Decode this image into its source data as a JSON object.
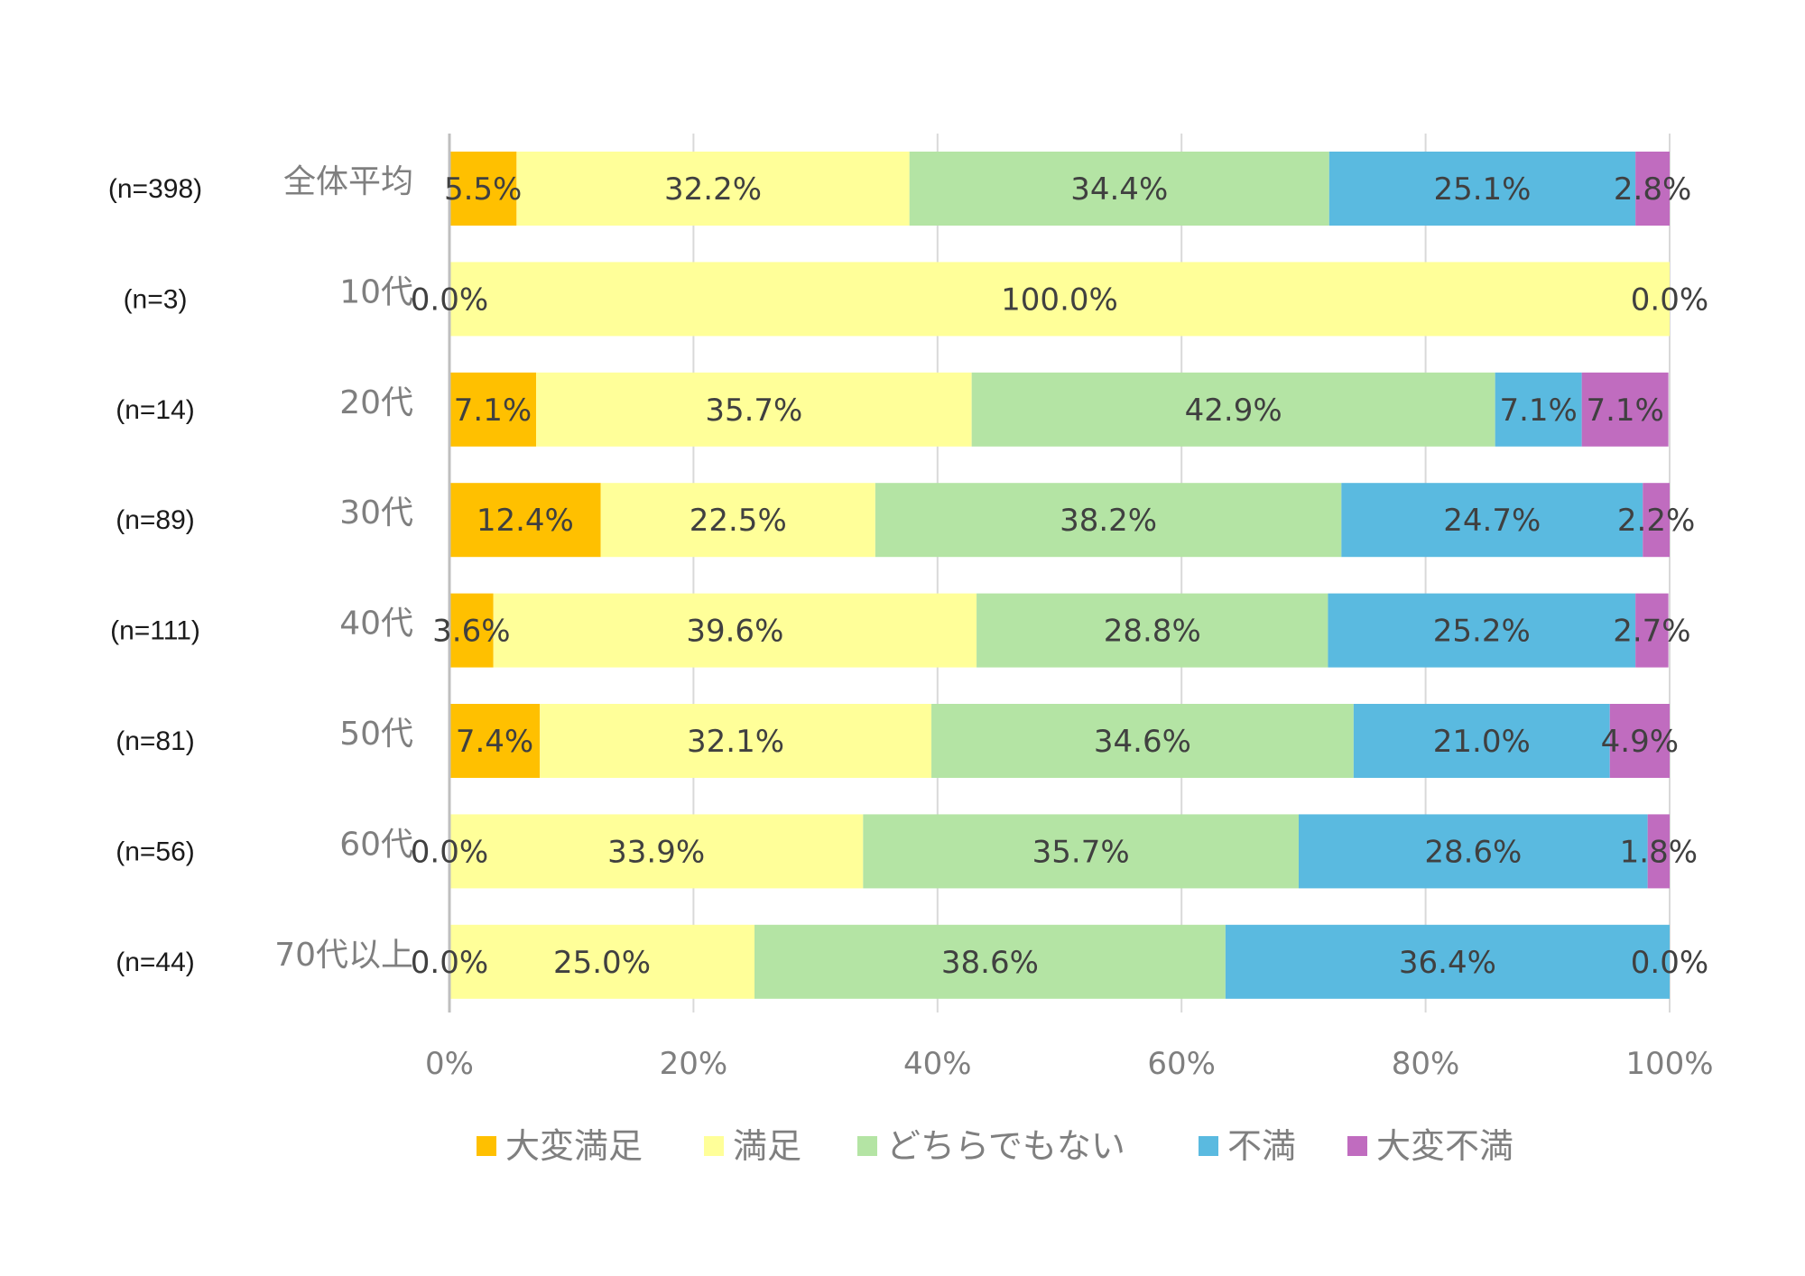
{
  "chart_data": {
    "type": "bar",
    "orientation": "horizontal",
    "stacked": "percent",
    "title": "",
    "xlabel": "",
    "ylabel": "",
    "xlim": [
      0,
      100
    ],
    "x_ticks": [
      "0%",
      "20%",
      "40%",
      "60%",
      "80%",
      "100%"
    ],
    "grid": true,
    "legend_position": "bottom",
    "categories": [
      "全体平均",
      "10代",
      "20代",
      "30代",
      "40代",
      "50代",
      "60代",
      "70代以上"
    ],
    "sample_sizes": [
      "(n=398)",
      "(n=3)",
      "(n=14)",
      "(n=89)",
      "(n=111)",
      "(n=81)",
      "(n=56)",
      "(n=44)"
    ],
    "series": [
      {
        "name": "大変満足",
        "color": "#FFC000",
        "values": [
          5.5,
          0.0,
          7.1,
          12.4,
          3.6,
          7.4,
          0.0,
          0.0
        ],
        "labels": [
          "5.5%",
          "0.0%",
          "7.1%",
          "12.4%",
          "3.6%",
          "7.4%",
          "0.0%",
          "0.0%"
        ]
      },
      {
        "name": "満足",
        "color": "#FFFF99",
        "values": [
          32.2,
          100.0,
          35.7,
          22.5,
          39.6,
          32.1,
          33.9,
          25.0
        ],
        "labels": [
          "32.2%",
          "100.0%",
          "35.7%",
          "22.5%",
          "39.6%",
          "32.1%",
          "33.9%",
          "25.0%"
        ]
      },
      {
        "name": "どちらでもない",
        "color": "#B4E4A4",
        "values": [
          34.4,
          0.0,
          42.9,
          38.2,
          28.8,
          34.6,
          35.7,
          38.6
        ],
        "labels": [
          "34.4%",
          "",
          "42.9%",
          "38.2%",
          "28.8%",
          "34.6%",
          "35.7%",
          "38.6%"
        ]
      },
      {
        "name": "不満",
        "color": "#5ABAE0",
        "values": [
          25.1,
          0.0,
          7.1,
          24.7,
          25.2,
          21.0,
          28.6,
          36.4
        ],
        "labels": [
          "25.1%",
          "",
          "7.1%",
          "24.7%",
          "25.2%",
          "21.0%",
          "28.6%",
          "36.4%"
        ]
      },
      {
        "name": "大変不満",
        "color": "#C06CBF",
        "values": [
          2.8,
          0.0,
          7.1,
          2.2,
          2.7,
          4.9,
          1.8,
          0.0
        ],
        "labels": [
          "2.8%",
          "0.0%",
          "7.1%",
          "2.2%",
          "2.7%",
          "4.9%",
          "1.8%",
          "0.0%"
        ]
      }
    ]
  }
}
